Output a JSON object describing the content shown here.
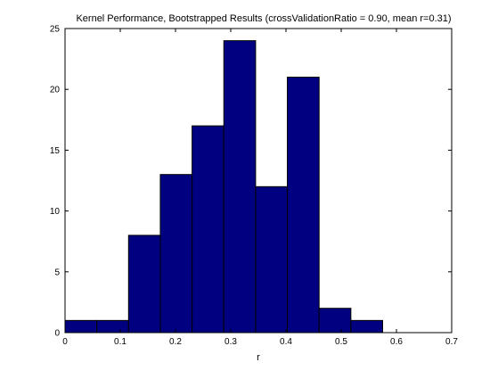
{
  "chart_data": {
    "type": "bar",
    "title": "Kernel Performance, Bootstrapped Results (crossValidationRatio = 0.90, mean r=0.31)",
    "xlabel": "r",
    "ylabel": "",
    "xlim": [
      0,
      0.7
    ],
    "ylim": [
      0,
      25
    ],
    "x_ticks": [
      "0",
      "0.1",
      "0.2",
      "0.3",
      "0.4",
      "0.5",
      "0.6",
      "0.7"
    ],
    "y_ticks": [
      "0",
      "5",
      "10",
      "15",
      "20",
      "25"
    ],
    "grid": false,
    "bin_edges": [
      0,
      0.0575,
      0.115,
      0.1725,
      0.23,
      0.2875,
      0.345,
      0.4025,
      0.46,
      0.5175,
      0.575
    ],
    "values": [
      1,
      1,
      8,
      13,
      17,
      24,
      12,
      21,
      2,
      1
    ],
    "bar_color": "#000080",
    "edge_color": "#000000"
  }
}
